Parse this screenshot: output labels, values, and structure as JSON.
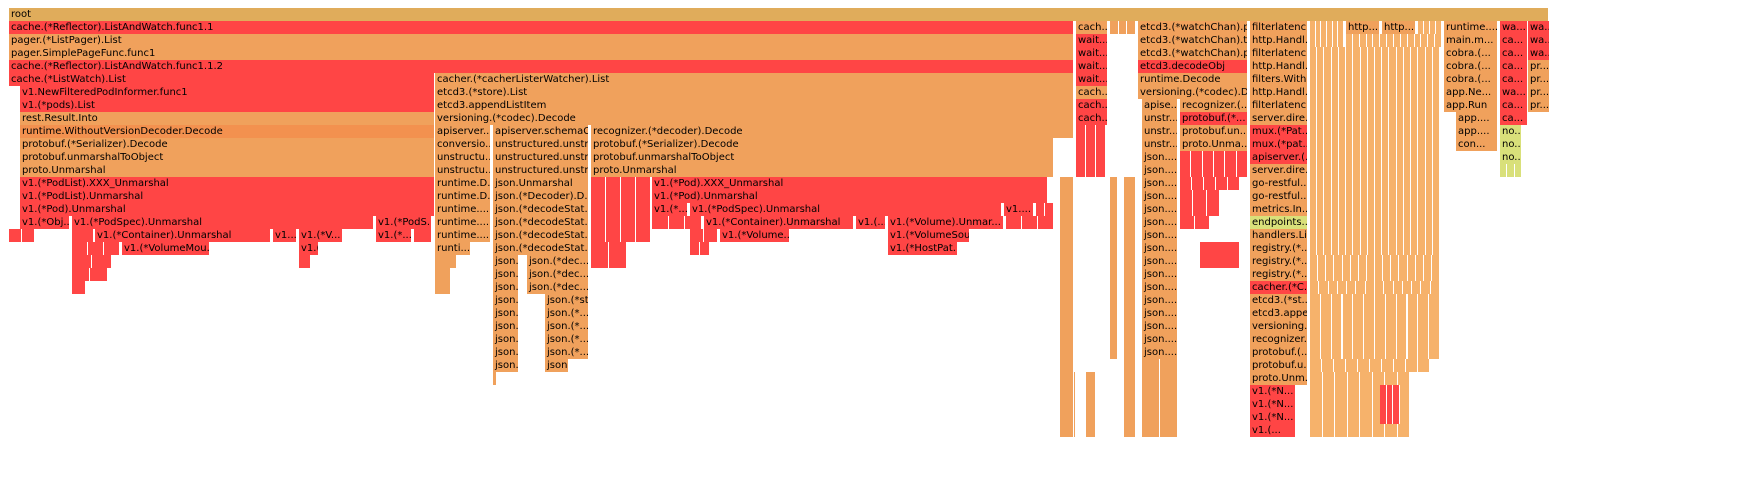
{
  "colors": {
    "root": "#e0ac5b",
    "red": "#ff4545",
    "red2": "#f95b4c",
    "orange": "#f0a15c",
    "orange2": "#f3914f",
    "peach": "#f6b26b",
    "yellow": "#d9e07a",
    "light_orange": "#f6c382"
  },
  "frames": {
    "root": "root",
    "l1": [
      "cache.(*Reflector).ListAndWatch.func1.1",
      "cach...",
      "wait...",
      "etcd3.(*watchChan).p...",
      "filterlatenc...",
      "http....",
      "http....",
      "runtime....",
      "wa...",
      "wa..."
    ],
    "l2": [
      "pager.(*ListPager).List",
      "wait...",
      "etcd3.(*watchChan).tr...",
      "http.Handl...",
      "main.m...",
      "ca...",
      "wa..."
    ],
    "l3": [
      "pager.SimplePageFunc.func1",
      "wait...",
      "etcd3.(*watchChan).p...",
      "filterlatenc...",
      "cobra.(...",
      "ca...",
      "wa..."
    ],
    "l4": [
      "cache.(*Reflector).ListAndWatch.func1.1.2",
      "wait...",
      "etcd3.decodeObj",
      "http.Handl...",
      "cobra.(...",
      "ca...",
      "pr..."
    ],
    "l5": [
      "cache.(*ListWatch).List",
      "cacher.(*cacherListerWatcher).List",
      "wait...",
      "runtime.Decode",
      "filters.With...",
      "cobra.(...",
      "ca...",
      "pr..."
    ],
    "l6": [
      "v1.NewFilteredPodInformer.func1",
      "etcd3.(*store).List",
      "cach...",
      "versioning.(*codec).D...",
      "http.Handl...",
      "app.Ne...",
      "wa...",
      "pr..."
    ],
    "l7": [
      "v1.(*pods).List",
      "etcd3.appendListItem",
      "cach...",
      "apise...",
      "recognizer.(...",
      "filterlatenc...",
      "app.Run",
      "ca...",
      "pr..."
    ],
    "l8": [
      "rest.Result.Into",
      "versioning.(*codec).Decode",
      "cach...",
      "unstr...",
      "protobuf.(*...",
      "server.dire...",
      "app....",
      "ca..."
    ],
    "l9": [
      "runtime.WithoutVersionDecoder.Decode",
      "apiserver....",
      "apiserver.schemaC...",
      "recognizer.(*decoder).Decode",
      "unstr...",
      "protobuf.un...",
      "mux.(*Pat...",
      "app....",
      "no..."
    ],
    "l10": [
      "protobuf.(*Serializer).Decode",
      "conversio...",
      "unstructured.unstr...",
      "protobuf.(*Serializer).Decode",
      "unstr...",
      "proto.Unma...",
      "mux.(*pat...",
      "con...",
      "no..."
    ],
    "l11": [
      "protobuf.unmarshalToObject",
      "unstructu...",
      "unstructured.unstr...",
      "protobuf.unmarshalToObject",
      "json....",
      "apiserver.(...",
      "no..."
    ],
    "l12": [
      "proto.Unmarshal",
      "unstructu...",
      "unstructured.unstr...",
      "proto.Unmarshal",
      "json....",
      "server.dire..."
    ],
    "l13": [
      "v1.(*PodList).XXX_Unmarshal",
      "runtime.D...",
      "json.Unmarshal",
      "v1.(*Pod).XXX_Unmarshal",
      "json....",
      "go-restful...."
    ],
    "l14": [
      "v1.(*PodList).Unmarshal",
      "runtime.D...",
      "json.(*Decoder).D...",
      "v1.(*Pod).Unmarshal",
      "json....",
      "go-restful...."
    ],
    "l15": [
      "v1.(*Pod).Unmarshal",
      "runtime....",
      "json.(*decodeStat...",
      "v1.(*...",
      "v1.(*PodSpec).Unmarshal",
      "v1....",
      "json....",
      "metrics.In..."
    ],
    "l16": [
      "v1.(*Obj...",
      "v1.(*PodSpec).Unmarshal",
      "v1.(*PodS...",
      "runtime....",
      "json.(*decodeStat...",
      "v1.(*Container).Unmarshal",
      "v1.(...",
      "v1.(*Volume).Unmar...",
      "json....",
      "endpoints...."
    ],
    "l17": [
      "v1.(*Container).Unmarshal",
      "v1....",
      "v1.(*V...",
      "v1.(*...",
      "runtime....",
      "json.(*decodeStat...",
      "v1.(*Volume...",
      "v1.(*VolumeSou...",
      "json....",
      "handlers.Li..."
    ],
    "l18": [
      "v1.(*VolumeMou...",
      "v1.(*V...",
      "runti...",
      "json.(*decodeStat...",
      "v1.(*HostPat...",
      "json....",
      "registry.(*..."
    ],
    "l19": [
      "json...",
      "json.(*dec...",
      "json....",
      "registry.(*..."
    ],
    "l20": [
      "json...",
      "json.(*dec...",
      "json....",
      "registry.(*..."
    ],
    "l21": [
      "json...",
      "json.(*dec...",
      "json....",
      "cacher.(*C..."
    ],
    "l22": [
      "json...",
      "json.(*st...",
      "json....",
      "etcd3.(*st..."
    ],
    "l23": [
      "json...",
      "json.(*...",
      "json....",
      "etcd3.appe..."
    ],
    "l24": [
      "json...",
      "json.(*...",
      "json....",
      "versioning...."
    ],
    "l25": [
      "json...",
      "json.(*...",
      "json....",
      "recognizer...."
    ],
    "l26": [
      "json...",
      "json.(*...",
      "json....",
      "protobuf.(..."
    ],
    "l27": [
      "json...",
      "json....",
      "protobuf.u..."
    ],
    "l28": [
      "proto.Unm..."
    ],
    "l29": [
      "v1.(*N..."
    ],
    "l30": [
      "v1.(*N..."
    ],
    "l31": [
      "v1.(*N..."
    ],
    "l32": [
      "v1.(..."
    ]
  }
}
